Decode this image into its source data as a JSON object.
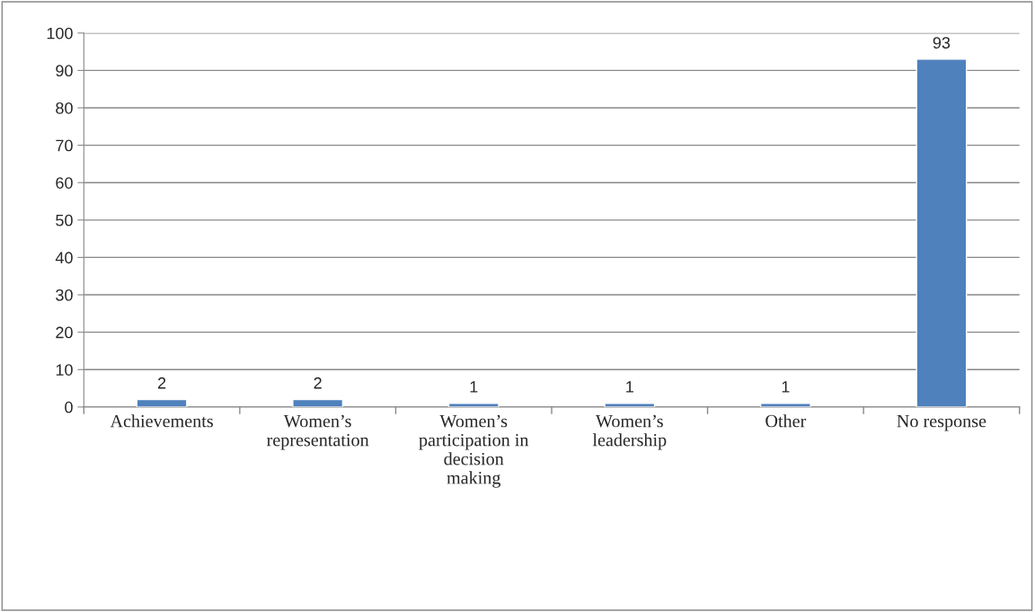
{
  "chart_data": {
    "type": "bar",
    "categories": [
      "Achievements",
      "Women’s\nrepresentation",
      "Women’s\nparticipation in\ndecision\nmaking",
      "Women’s\nleadership",
      "Other",
      "No response"
    ],
    "values": [
      2,
      2,
      1,
      1,
      1,
      93
    ],
    "color": "#4f81bd",
    "ylim": [
      0,
      100
    ],
    "yticks": [
      0,
      10,
      20,
      30,
      40,
      50,
      60,
      70,
      80,
      90,
      100
    ],
    "grid": "y",
    "data_labels": true,
    "legend": false
  }
}
